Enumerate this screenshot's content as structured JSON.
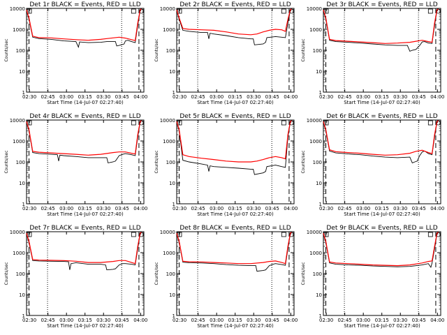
{
  "chart_data": [
    {
      "type": "line",
      "title": "Det 1r BLACK = Events, RED = LLD",
      "xlabel": "Start Time (14-Jul-07 02:27:40)",
      "ylabel": "Counts/sec",
      "x_ticks": [
        "02:30",
        "02:45",
        "03:00",
        "03:15",
        "03:30",
        "03:45",
        "04:00"
      ],
      "y_ticks": [
        "1",
        "10",
        "100",
        "1000",
        "10000"
      ],
      "ylim": [
        1,
        10000
      ],
      "yscale": "log",
      "x_range_minutes": [
        0,
        95
      ],
      "series": [
        {
          "name": "Events",
          "color": "#000000",
          "x": [
            0,
            2,
            5,
            10,
            20,
            30,
            40,
            42,
            43,
            50,
            60,
            65,
            72,
            73,
            75,
            79,
            80,
            82,
            85,
            88,
            90,
            92,
            93
          ],
          "y": [
            8000,
            3000,
            420,
            360,
            330,
            280,
            260,
            140,
            250,
            230,
            240,
            260,
            260,
            160,
            170,
            200,
            280,
            300,
            260,
            230,
            1500,
            8000,
            9000
          ]
        },
        {
          "name": "LLD",
          "color": "#ff0000",
          "x": [
            0,
            2,
            5,
            10,
            20,
            30,
            40,
            50,
            60,
            65,
            70,
            75,
            80,
            85,
            88,
            90,
            92,
            93
          ],
          "y": [
            8500,
            3500,
            470,
            400,
            390,
            350,
            320,
            300,
            330,
            360,
            390,
            420,
            380,
            320,
            290,
            2000,
            8500,
            9500
          ]
        }
      ]
    },
    {
      "type": "line",
      "title": "Det 2r BLACK = Events, RED = LLD",
      "xlabel": "Start Time (14-Jul-07 02:27:40)",
      "ylabel": "Counts/sec",
      "x_ticks": [
        "02:30",
        "02:45",
        "03:00",
        "03:15",
        "03:30",
        "03:45",
        "04:00"
      ],
      "y_ticks": [
        "1",
        "10",
        "100",
        "1000",
        "10000"
      ],
      "ylim": [
        1,
        10000
      ],
      "yscale": "log",
      "x_range_minutes": [
        0,
        95
      ],
      "series": [
        {
          "name": "Events",
          "color": "#000000",
          "x": [
            0,
            2,
            5,
            10,
            20,
            25,
            26,
            27,
            30,
            40,
            50,
            60,
            62,
            63,
            70,
            72,
            73,
            80,
            85,
            88,
            90,
            92,
            93
          ],
          "y": [
            8000,
            3000,
            900,
            800,
            700,
            700,
            350,
            650,
            600,
            500,
            400,
            350,
            350,
            180,
            200,
            240,
            400,
            450,
            420,
            400,
            2000,
            8000,
            9000
          ]
        },
        {
          "name": "LLD",
          "color": "#ff0000",
          "x": [
            0,
            2,
            5,
            10,
            20,
            30,
            40,
            50,
            60,
            65,
            70,
            75,
            80,
            85,
            88,
            90,
            92,
            93
          ],
          "y": [
            8500,
            3500,
            1100,
            1000,
            950,
            900,
            750,
            600,
            550,
            600,
            750,
            900,
            1000,
            950,
            800,
            3000,
            8500,
            9500
          ]
        }
      ]
    },
    {
      "type": "line",
      "title": "Det 3r BLACK = Events, RED = LLD",
      "xlabel": "Start Time (14-Jul-07 02:27:40)",
      "ylabel": "Counts/sec",
      "x_ticks": [
        "02:30",
        "02:45",
        "03:00",
        "03:15",
        "03:30",
        "03:45",
        "04:00"
      ],
      "y_ticks": [
        "1",
        "10",
        "100",
        "1000",
        "10000"
      ],
      "ylim": [
        1,
        10000
      ],
      "yscale": "log",
      "x_range_minutes": [
        0,
        95
      ],
      "series": [
        {
          "name": "Events",
          "color": "#000000",
          "x": [
            0,
            2,
            5,
            10,
            20,
            30,
            40,
            50,
            60,
            68,
            70,
            72,
            75,
            78,
            80,
            82,
            85,
            88,
            90,
            92,
            93
          ],
          "y": [
            8000,
            3000,
            300,
            260,
            240,
            220,
            200,
            180,
            170,
            170,
            90,
            100,
            110,
            170,
            250,
            260,
            220,
            210,
            1500,
            8000,
            9000
          ]
        },
        {
          "name": "LLD",
          "color": "#ff0000",
          "x": [
            0,
            2,
            5,
            10,
            20,
            30,
            40,
            50,
            60,
            70,
            75,
            80,
            85,
            88,
            90,
            92,
            93
          ],
          "y": [
            8500,
            3500,
            330,
            290,
            270,
            250,
            230,
            210,
            220,
            240,
            270,
            300,
            260,
            240,
            2000,
            8500,
            9500
          ]
        }
      ]
    },
    {
      "type": "line",
      "title": "Det 4r BLACK = Events, RED = LLD",
      "xlabel": "Start Time (14-Jul-07 02:27:40)",
      "ylabel": "Counts/sec",
      "x_ticks": [
        "02:30",
        "02:45",
        "03:00",
        "03:15",
        "03:30",
        "03:45",
        "04:00"
      ],
      "y_ticks": [
        "1",
        "10",
        "100",
        "1000",
        "10000"
      ],
      "ylim": [
        1,
        10000
      ],
      "yscale": "log",
      "x_range_minutes": [
        0,
        95
      ],
      "series": [
        {
          "name": "Events",
          "color": "#000000",
          "x": [
            0,
            2,
            5,
            10,
            20,
            25,
            26,
            27,
            30,
            40,
            50,
            60,
            65,
            66,
            70,
            72,
            75,
            78,
            80,
            85,
            88,
            90,
            92,
            93
          ],
          "y": [
            8000,
            3000,
            280,
            250,
            230,
            220,
            110,
            210,
            200,
            180,
            160,
            160,
            160,
            90,
            100,
            110,
            200,
            230,
            250,
            220,
            200,
            1500,
            8000,
            9000
          ]
        },
        {
          "name": "LLD",
          "color": "#ff0000",
          "x": [
            0,
            2,
            5,
            10,
            20,
            30,
            40,
            50,
            60,
            70,
            75,
            80,
            85,
            88,
            90,
            92,
            93
          ],
          "y": [
            8500,
            3500,
            320,
            290,
            270,
            250,
            230,
            210,
            230,
            280,
            300,
            300,
            260,
            240,
            2000,
            8500,
            9500
          ]
        }
      ]
    },
    {
      "type": "line",
      "title": "Det 5r BLACK = Events, RED = LLD",
      "xlabel": "Start Time (14-Jul-07 02:27:40)",
      "ylabel": "Counts/sec",
      "x_ticks": [
        "02:30",
        "02:45",
        "03:00",
        "03:15",
        "03:30",
        "03:45",
        "04:00"
      ],
      "y_ticks": [
        "1",
        "10",
        "100",
        "1000",
        "10000"
      ],
      "ylim": [
        1,
        10000
      ],
      "yscale": "log",
      "x_range_minutes": [
        0,
        95
      ],
      "series": [
        {
          "name": "Events",
          "color": "#000000",
          "x": [
            0,
            2,
            5,
            10,
            20,
            25,
            26,
            27,
            30,
            40,
            50,
            60,
            62,
            63,
            70,
            72,
            73,
            80,
            85,
            88,
            90,
            92,
            93
          ],
          "y": [
            8000,
            3000,
            120,
            100,
            80,
            70,
            35,
            65,
            60,
            55,
            50,
            45,
            45,
            25,
            30,
            35,
            60,
            70,
            60,
            55,
            1500,
            8000,
            9000
          ]
        },
        {
          "name": "LLD",
          "color": "#ff0000",
          "x": [
            0,
            2,
            5,
            10,
            20,
            30,
            40,
            50,
            60,
            65,
            70,
            75,
            80,
            85,
            88,
            90,
            92,
            93
          ],
          "y": [
            8500,
            3500,
            220,
            180,
            150,
            130,
            110,
            100,
            100,
            110,
            130,
            160,
            180,
            160,
            140,
            2000,
            8500,
            9500
          ]
        }
      ]
    },
    {
      "type": "line",
      "title": "Det 6r BLACK = Events, RED = LLD",
      "xlabel": "Start Time (14-Jul-07 02:27:40)",
      "ylabel": "Counts/sec",
      "x_ticks": [
        "02:30",
        "02:45",
        "03:00",
        "03:15",
        "03:30",
        "03:45",
        "04:00"
      ],
      "y_ticks": [
        "1",
        "10",
        "100",
        "1000",
        "10000"
      ],
      "ylim": [
        1,
        10000
      ],
      "yscale": "log",
      "x_range_minutes": [
        0,
        95
      ],
      "series": [
        {
          "name": "Events",
          "color": "#000000",
          "x": [
            0,
            2,
            5,
            10,
            20,
            30,
            40,
            50,
            60,
            70,
            72,
            74,
            76,
            78,
            80,
            82,
            85,
            88,
            90,
            92,
            93
          ],
          "y": [
            8000,
            3000,
            330,
            270,
            240,
            220,
            190,
            170,
            160,
            170,
            90,
            100,
            110,
            200,
            300,
            330,
            250,
            220,
            1500,
            8000,
            9000
          ]
        },
        {
          "name": "LLD",
          "color": "#ff0000",
          "x": [
            0,
            2,
            5,
            10,
            20,
            30,
            40,
            50,
            60,
            70,
            75,
            80,
            85,
            88,
            90,
            92,
            93
          ],
          "y": [
            8500,
            3500,
            380,
            310,
            280,
            260,
            230,
            210,
            220,
            260,
            320,
            360,
            280,
            250,
            2000,
            8500,
            9500
          ]
        }
      ]
    },
    {
      "type": "line",
      "title": "Det 7r BLACK = Events, RED = LLD",
      "xlabel": "Start Time (14-Jul-07 02:27:40)",
      "ylabel": "Counts/sec",
      "x_ticks": [
        "02:30",
        "02:45",
        "03:00",
        "03:15",
        "03:30",
        "03:45",
        "04:00"
      ],
      "y_ticks": [
        "1",
        "10",
        "100",
        "1000",
        "10000"
      ],
      "ylim": [
        1,
        10000
      ],
      "yscale": "log",
      "x_range_minutes": [
        0,
        95
      ],
      "series": [
        {
          "name": "Events",
          "color": "#000000",
          "x": [
            0,
            2,
            5,
            10,
            20,
            30,
            34,
            35,
            36,
            40,
            50,
            60,
            64,
            65,
            70,
            72,
            75,
            78,
            80,
            85,
            88,
            90,
            92,
            93
          ],
          "y": [
            8000,
            3000,
            420,
            400,
            390,
            380,
            370,
            150,
            300,
            330,
            280,
            280,
            260,
            150,
            160,
            170,
            260,
            300,
            300,
            280,
            260,
            1500,
            8000,
            9000
          ]
        },
        {
          "name": "LLD",
          "color": "#ff0000",
          "x": [
            0,
            2,
            5,
            10,
            20,
            30,
            40,
            50,
            60,
            70,
            75,
            80,
            85,
            88,
            90,
            92,
            93
          ],
          "y": [
            8500,
            3500,
            470,
            440,
            430,
            420,
            390,
            340,
            340,
            380,
            420,
            420,
            340,
            300,
            2000,
            8500,
            9500
          ]
        }
      ]
    },
    {
      "type": "line",
      "title": "Det 8r BLACK = Events, RED = LLD",
      "xlabel": "Start Time (14-Jul-07 02:27:40)",
      "ylabel": "Counts/sec",
      "x_ticks": [
        "02:30",
        "02:45",
        "03:00",
        "03:15",
        "03:30",
        "03:45",
        "04:00"
      ],
      "y_ticks": [
        "1",
        "10",
        "100",
        "1000",
        "10000"
      ],
      "ylim": [
        1,
        10000
      ],
      "yscale": "log",
      "x_range_minutes": [
        0,
        95
      ],
      "series": [
        {
          "name": "Events",
          "color": "#000000",
          "x": [
            0,
            2,
            5,
            10,
            20,
            30,
            40,
            50,
            60,
            64,
            65,
            70,
            72,
            75,
            78,
            80,
            85,
            88,
            90,
            92,
            93
          ],
          "y": [
            8000,
            3000,
            350,
            330,
            320,
            300,
            270,
            250,
            240,
            240,
            130,
            140,
            150,
            240,
            280,
            300,
            270,
            250,
            1500,
            8000,
            9000
          ]
        },
        {
          "name": "LLD",
          "color": "#ff0000",
          "x": [
            0,
            2,
            5,
            10,
            20,
            30,
            40,
            50,
            60,
            70,
            75,
            80,
            85,
            88,
            90,
            92,
            93
          ],
          "y": [
            8500,
            3500,
            390,
            370,
            360,
            340,
            320,
            300,
            300,
            340,
            380,
            400,
            340,
            300,
            2000,
            8500,
            9500
          ]
        }
      ]
    },
    {
      "type": "line",
      "title": "Det 9r BLACK = Events, RED = LLD",
      "xlabel": "Start Time (14-Jul-07 02:27:40)",
      "ylabel": "Counts/sec",
      "x_ticks": [
        "02:30",
        "02:45",
        "03:00",
        "03:15",
        "03:30",
        "03:45",
        "04:00"
      ],
      "y_ticks": [
        "1",
        "10",
        "100",
        "1000",
        "10000"
      ],
      "ylim": [
        1,
        10000
      ],
      "yscale": "log",
      "x_range_minutes": [
        0,
        95
      ],
      "series": [
        {
          "name": "Events",
          "color": "#000000",
          "x": [
            0,
            2,
            5,
            10,
            20,
            30,
            40,
            50,
            60,
            70,
            80,
            85,
            87,
            88,
            90,
            92,
            93
          ],
          "y": [
            8000,
            3000,
            320,
            280,
            260,
            250,
            230,
            220,
            210,
            220,
            260,
            300,
            200,
            320,
            1500,
            8000,
            9000
          ]
        },
        {
          "name": "LLD",
          "color": "#ff0000",
          "x": [
            0,
            2,
            5,
            10,
            20,
            30,
            40,
            50,
            60,
            70,
            80,
            85,
            88,
            90,
            92,
            93
          ],
          "y": [
            8500,
            3500,
            360,
            320,
            300,
            280,
            260,
            250,
            240,
            260,
            320,
            380,
            400,
            2000,
            8500,
            9500
          ]
        }
      ]
    }
  ]
}
